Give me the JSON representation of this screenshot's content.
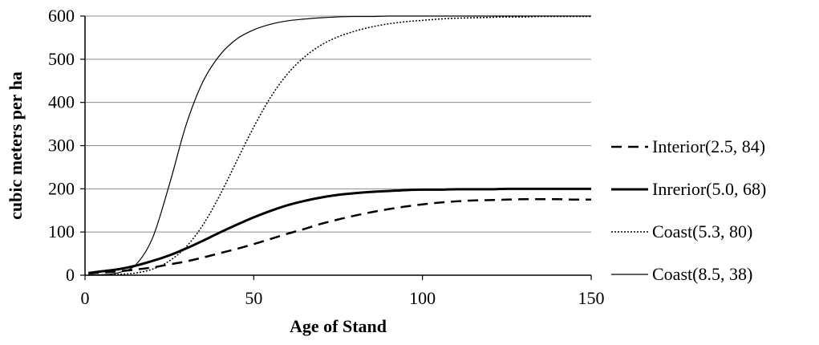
{
  "chart_data": {
    "type": "line",
    "xlabel": "Age of Stand",
    "ylabel": "cubic meters per ha",
    "xlim": [
      0,
      150
    ],
    "ylim": [
      0,
      600
    ],
    "xticks": [
      0,
      50,
      100,
      150
    ],
    "yticks": [
      0,
      100,
      200,
      300,
      400,
      500,
      600
    ],
    "grid": "horizontal",
    "legend_position": "right",
    "x": [
      1,
      5,
      10,
      15,
      20,
      25,
      30,
      35,
      40,
      45,
      50,
      55,
      60,
      65,
      70,
      75,
      80,
      85,
      90,
      95,
      100,
      105,
      110,
      115,
      120,
      125,
      130,
      135,
      140,
      145,
      150
    ],
    "series": [
      {
        "name": "Interior(2.5, 84)",
        "style": "dashed",
        "color": "#000000",
        "values": [
          4,
          6,
          9,
          13,
          18,
          25,
          32,
          41,
          51,
          61,
          72,
          84,
          96,
          107,
          119,
          129,
          138,
          146,
          153,
          159,
          164,
          168,
          171,
          173,
          174,
          175,
          176,
          176,
          176,
          175,
          175
        ]
      },
      {
        "name": "Inrerior(5.0, 68)",
        "style": "thick",
        "color": "#000000",
        "values": [
          5,
          9,
          14,
          22,
          33,
          46,
          62,
          80,
          99,
          117,
          134,
          149,
          162,
          172,
          180,
          186,
          190,
          193,
          195,
          197,
          198,
          198,
          199,
          199,
          199,
          200,
          200,
          200,
          200,
          200,
          200
        ]
      },
      {
        "name": "Coast(5.3, 80)",
        "style": "dotted",
        "color": "#000000",
        "values": [
          0,
          1,
          2,
          5,
          14,
          33,
          66,
          117,
          186,
          265,
          343,
          412,
          466,
          505,
          533,
          552,
          565,
          575,
          582,
          587,
          590,
          593,
          595,
          596,
          597,
          598,
          598,
          599,
          599,
          599,
          599
        ]
      },
      {
        "name": "Coast(8.5, 38)",
        "style": "thin",
        "color": "#000000",
        "values": [
          0,
          1,
          6,
          24,
          86,
          210,
          349,
          449,
          510,
          547,
          568,
          581,
          589,
          593,
          596,
          598,
          599,
          599,
          600,
          600,
          600,
          600,
          600,
          600,
          600,
          600,
          600,
          600,
          600,
          600,
          600
        ]
      }
    ]
  }
}
